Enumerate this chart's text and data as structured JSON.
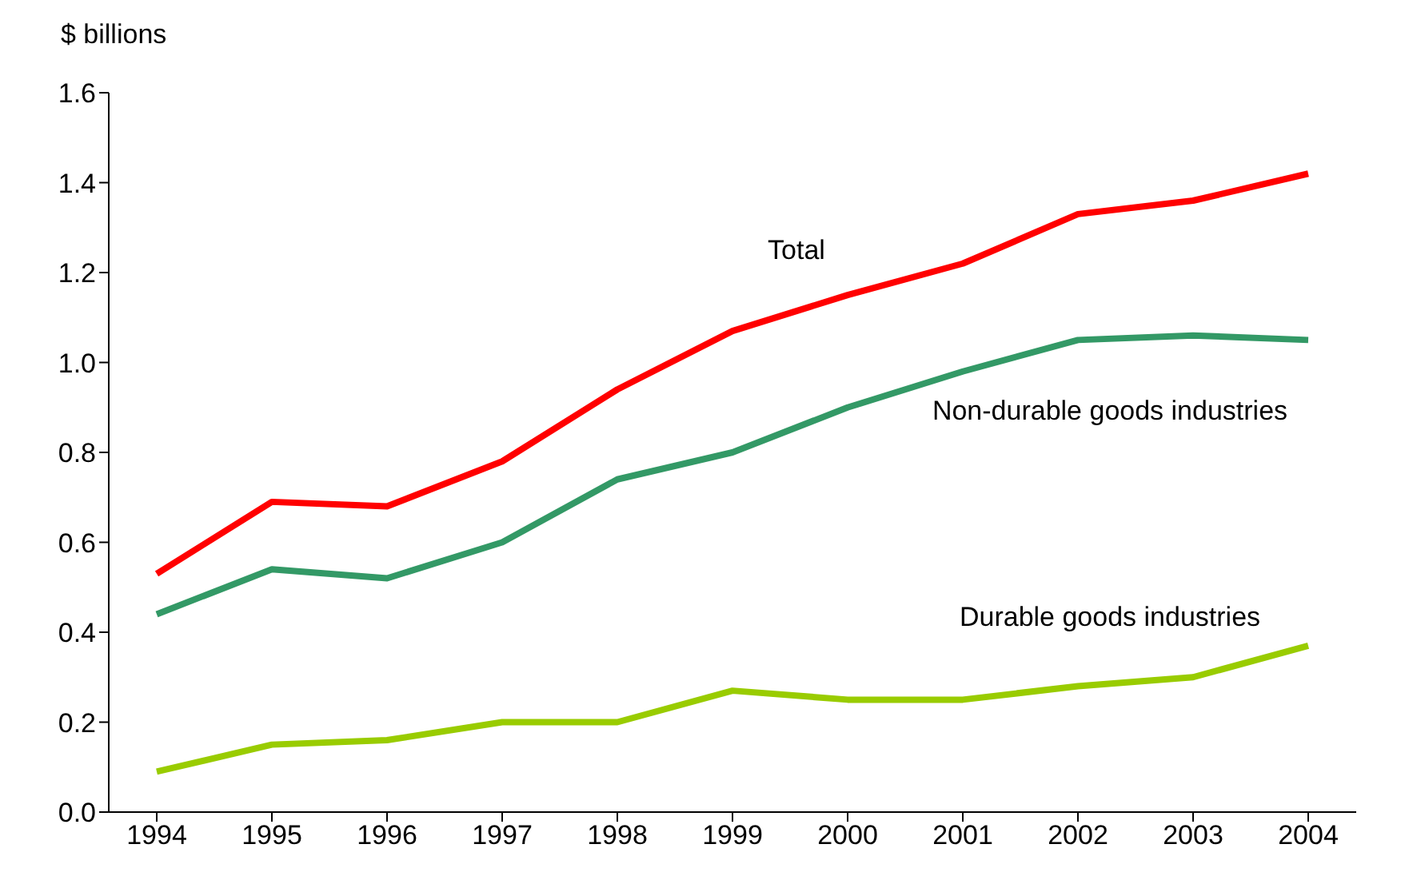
{
  "chart_data": {
    "type": "line",
    "ylabel": "$ billions",
    "categories": [
      "1994",
      "1995",
      "1996",
      "1997",
      "1998",
      "1999",
      "2000",
      "2001",
      "2002",
      "2003",
      "2004"
    ],
    "series": [
      {
        "name": "Total",
        "color": "#ff0000",
        "values": [
          0.53,
          0.69,
          0.68,
          0.78,
          0.94,
          1.07,
          1.15,
          1.22,
          1.33,
          1.36,
          1.42
        ]
      },
      {
        "name": "Non-durable goods industries",
        "color": "#339966",
        "values": [
          0.44,
          0.54,
          0.52,
          0.6,
          0.74,
          0.8,
          0.9,
          0.98,
          1.05,
          1.06,
          1.05
        ]
      },
      {
        "name": "Durable goods industries",
        "color": "#99cc00",
        "values": [
          0.09,
          0.15,
          0.16,
          0.2,
          0.2,
          0.27,
          0.25,
          0.25,
          0.28,
          0.3,
          0.37
        ]
      }
    ],
    "ylim": [
      0,
      1.6
    ],
    "yticks": [
      {
        "value": 0,
        "label": "0.0"
      },
      0.2,
      0.4,
      0.6,
      0.8,
      {
        "value": 1,
        "label": "1.0"
      },
      1.2,
      1.4,
      1.6
    ],
    "grid": false
  }
}
